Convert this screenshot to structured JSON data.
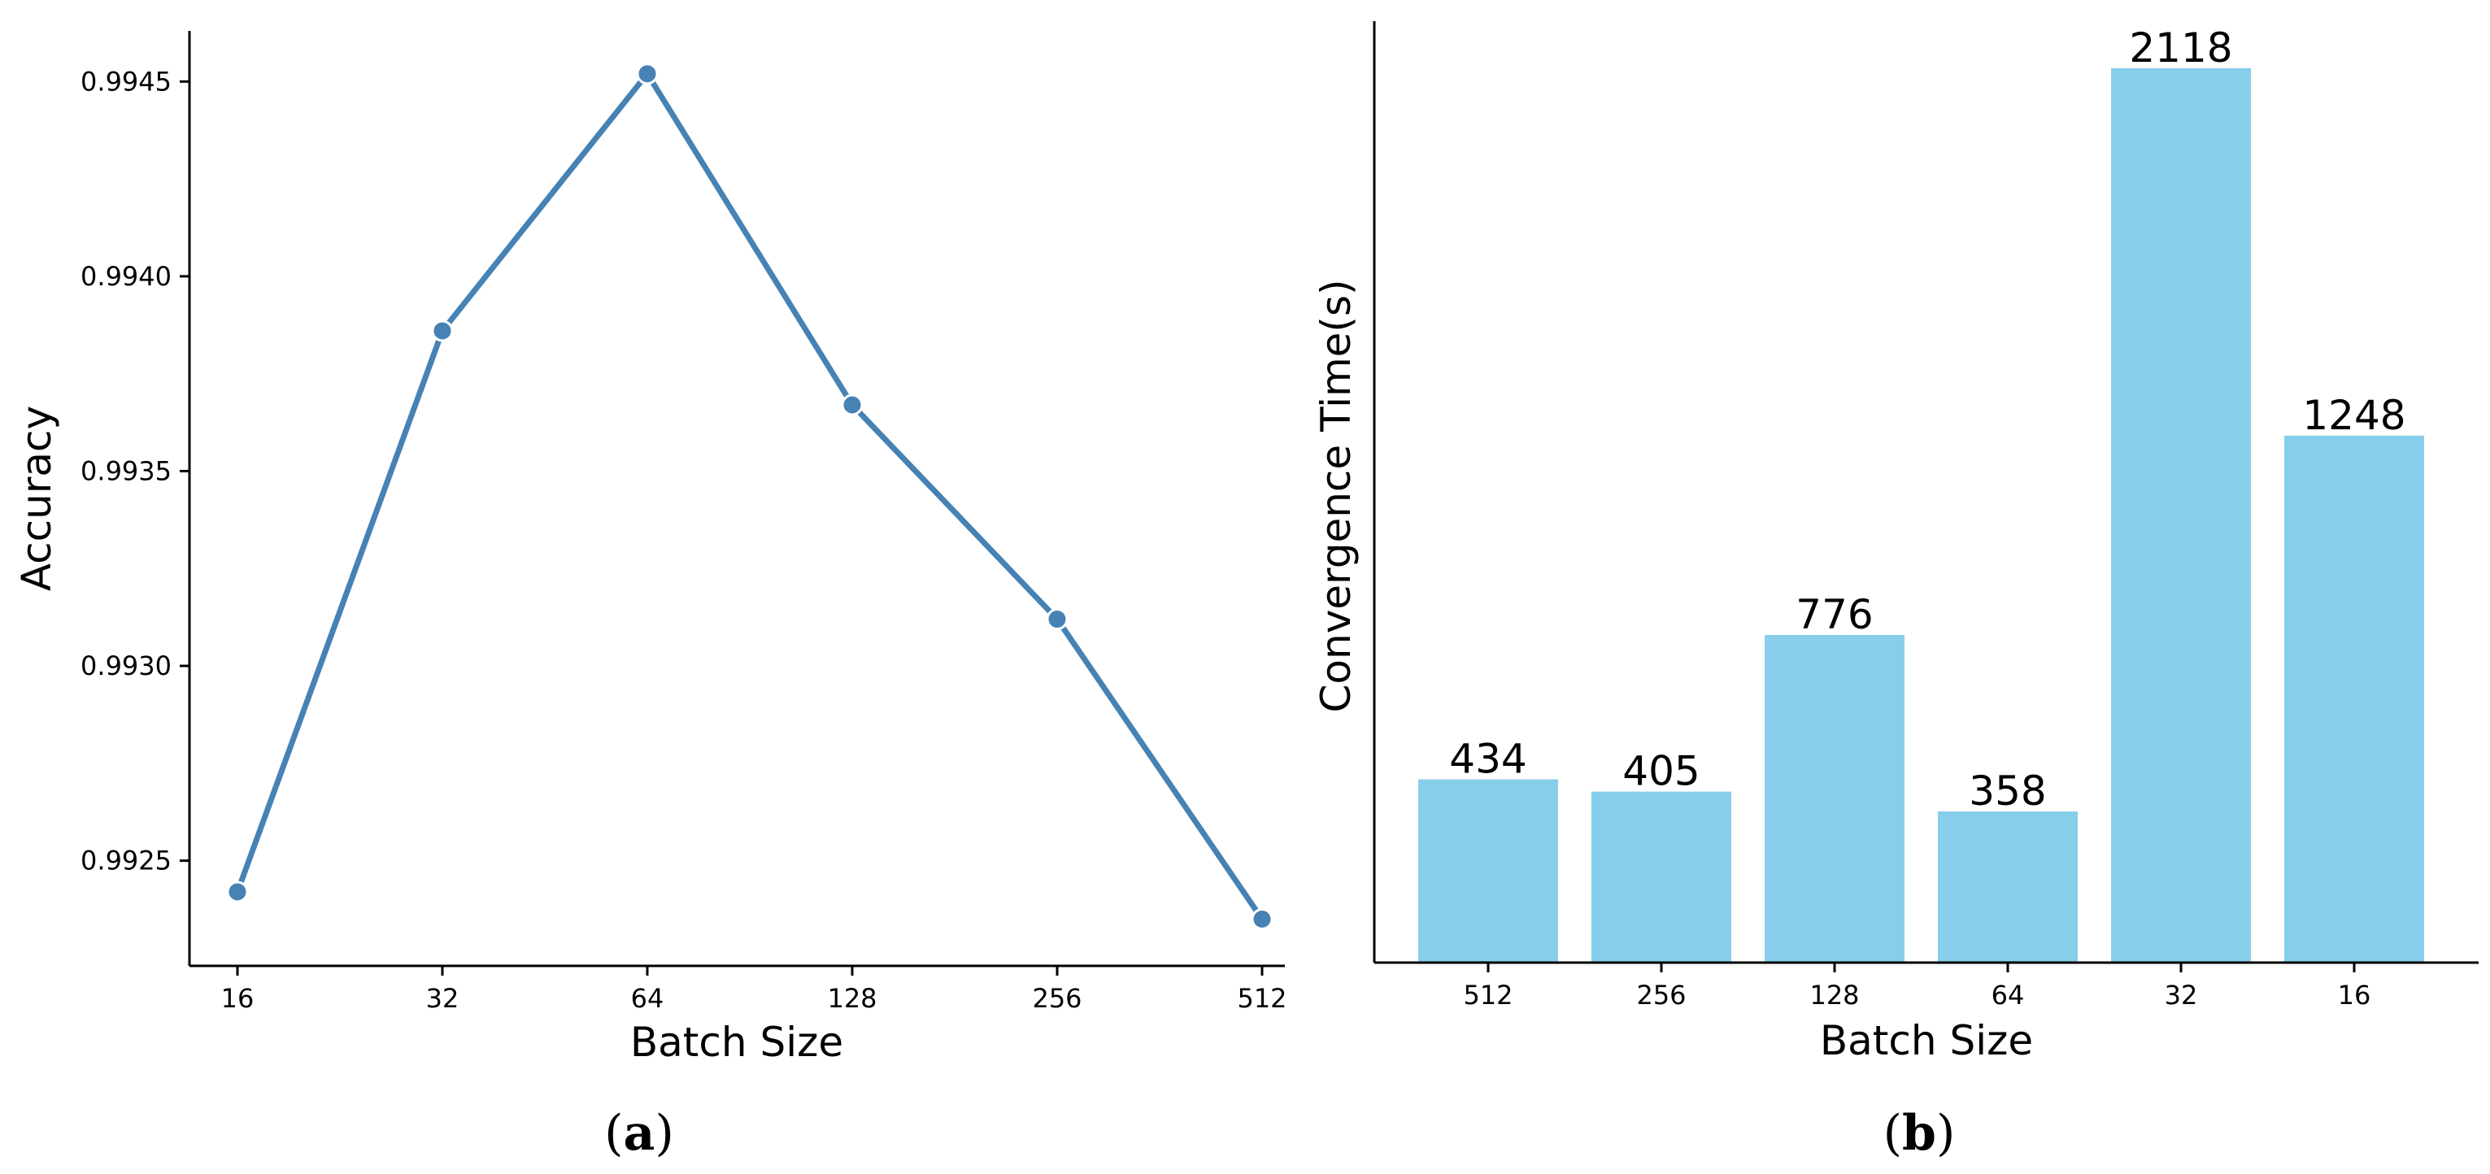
{
  "chart_data": [
    {
      "type": "line",
      "caption": "a",
      "x": [
        "16",
        "32",
        "64",
        "128",
        "256",
        "512"
      ],
      "series": [
        {
          "values": [
            0.99242,
            0.99386,
            0.99452,
            0.99367,
            0.99312,
            0.99235
          ]
        }
      ],
      "xlabel": "Batch Size",
      "ylabel": "Accuracy",
      "yticks": [
        "0.9925",
        "0.9930",
        "0.9935",
        "0.9940",
        "0.9945"
      ],
      "ytick_values": [
        0.9925,
        0.993,
        0.9935,
        0.994,
        0.9945
      ],
      "ylim": [
        0.99223,
        0.99463
      ],
      "grid": false,
      "color": "#4682b4"
    },
    {
      "type": "bar",
      "caption": "b",
      "categories": [
        "512",
        "256",
        "128",
        "64",
        "32",
        "16"
      ],
      "values": [
        434,
        405,
        776,
        358,
        2118,
        1248
      ],
      "data_labels": [
        "434",
        "405",
        "776",
        "358",
        "2118",
        "1248"
      ],
      "xlabel": "Batch Size",
      "ylabel": "Convergence Time(s)",
      "ylim": [
        0,
        2240
      ],
      "grid": false,
      "color": "#87ceeb"
    }
  ]
}
